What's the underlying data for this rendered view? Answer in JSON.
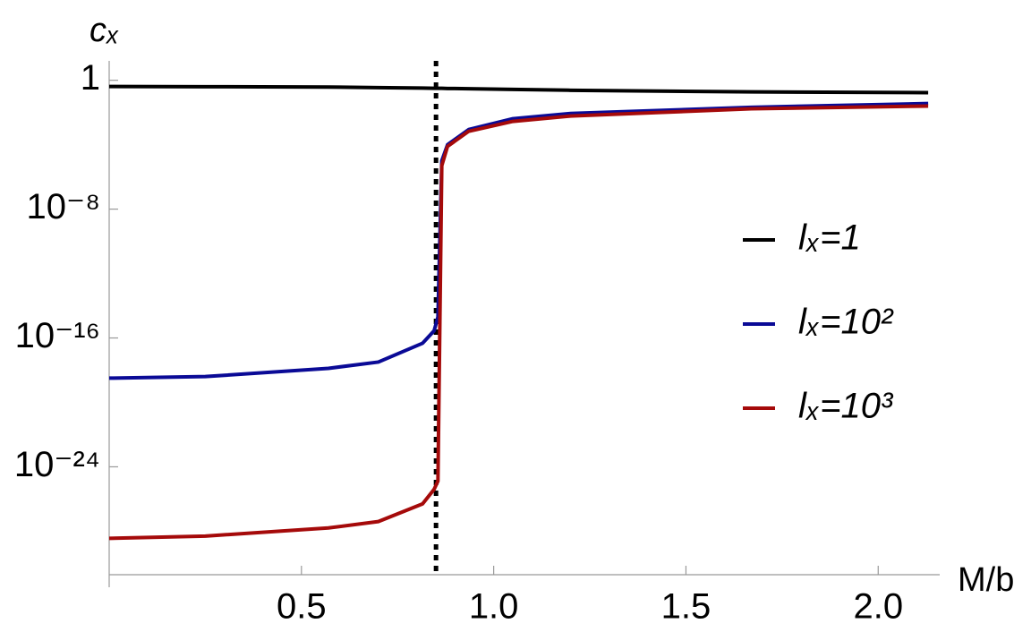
{
  "chart_data": {
    "type": "line",
    "x_label": "M/b",
    "y_label": "cₓ",
    "log_y": true,
    "xlim": [
      0,
      2.16
    ],
    "ylim": [
      2e-31,
      16
    ],
    "xticks": [
      0.5,
      {
        "value": 1.0,
        "label": "1.0"
      },
      1.5,
      {
        "value": 2.0,
        "label": "2.0"
      }
    ],
    "yticks": [
      1,
      {
        "value": 1e-08,
        "label": "10⁻⁸"
      },
      {
        "value": 1e-16,
        "label": "10⁻¹⁶"
      },
      {
        "value": 1e-24,
        "label": "10⁻²⁴"
      }
    ],
    "vline": 0.85,
    "legend_position": "right",
    "x": [
      0,
      0.25,
      0.57,
      0.7,
      0.815,
      0.845,
      0.855,
      0.865,
      0.88,
      0.935,
      1.05,
      1.2,
      1.67,
      2.13
    ],
    "series": [
      {
        "name": "lₓ=1",
        "color": "#000000",
        "values": [
          0.41,
          0.4,
          0.38,
          0.35,
          0.33,
          0.32,
          0.32,
          0.32,
          0.31,
          0.3,
          0.27,
          0.24,
          0.19,
          0.17
        ]
      },
      {
        "name": "lₓ=10²",
        "color": "#0a0a96",
        "values": [
          3.2e-19,
          4e-19,
          1.3e-18,
          3.2e-18,
          4.7e-17,
          2.8e-16,
          2e-15,
          1e-05,
          0.0001,
          0.00087,
          0.0041,
          0.0087,
          0.021,
          0.036
        ]
      },
      {
        "name": "lₓ=10³",
        "color": "#a50a0a",
        "values": [
          3.6e-29,
          5e-29,
          1.6e-28,
          4e-28,
          5e-27,
          4e-26,
          1.3e-25,
          5e-06,
          7.9e-05,
          0.00068,
          0.0028,
          0.006,
          0.017,
          0.025
        ]
      }
    ]
  }
}
